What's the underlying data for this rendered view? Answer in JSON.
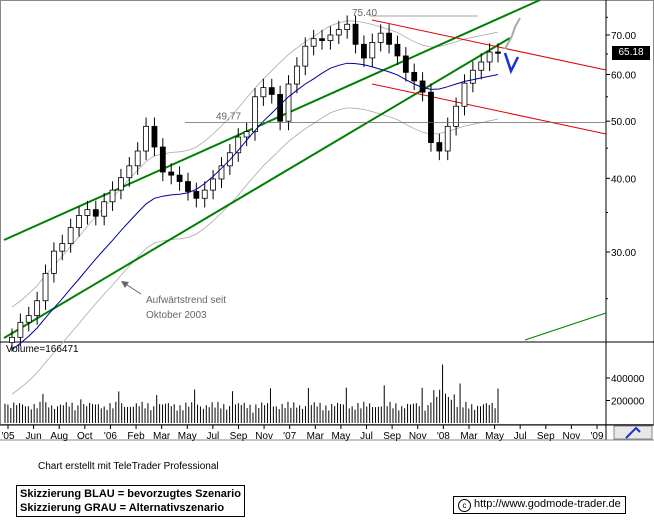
{
  "chart_data": {
    "type": "candlestick",
    "price_axis": {
      "tick_labels": [
        "70.00",
        "60.00",
        "50.00",
        "40.00",
        "30.00"
      ],
      "ticks": [
        70,
        60,
        50,
        40,
        30
      ],
      "scale": "log"
    },
    "x_axis": {
      "tick_labels": [
        "'05",
        "Jun",
        "Aug",
        "Oct",
        "'06",
        "Feb",
        "Mar",
        "May",
        "Jul",
        "Sep",
        "Nov",
        "'07",
        "Mar",
        "May",
        "Jul",
        "Sep",
        "Nov",
        "'08",
        "Mar",
        "May",
        "Jul",
        "Sep",
        "Nov",
        "'09"
      ]
    },
    "series": [
      {
        "name": "price",
        "close": [
          21.5,
          22.8,
          23.4,
          24.8,
          27.6,
          30.1,
          31.0,
          33.0,
          34.6,
          35.4,
          34.5,
          36.5,
          38.2,
          40.1,
          42.0,
          44.5,
          49.0,
          45.2,
          41.0,
          40.5,
          39.5,
          38.0,
          37.0,
          38.2,
          39.9,
          42.0,
          44.2,
          47.0,
          48.0,
          55.0,
          57.0,
          55.5,
          50.0,
          57.8,
          62.0,
          67.0,
          69.0,
          68.5,
          70.0,
          71.5,
          73.0,
          67.5,
          64.0,
          68.0,
          70.5,
          67.5,
          64.5,
          60.5,
          58.5,
          56.0,
          46.0,
          44.5,
          49.0,
          53.0,
          58.0,
          61.0,
          63.0,
          65.5,
          65.18
        ]
      },
      {
        "name": "moving-average",
        "values": [
          20.5,
          21.0,
          21.6,
          22.3,
          23.2,
          24.1,
          25.0,
          26.0,
          27.0,
          28.1,
          29.2,
          30.3,
          31.4,
          32.6,
          33.8,
          35.0,
          36.2,
          37.0,
          37.3,
          37.5,
          37.6,
          37.8,
          38.3,
          39.2,
          40.3,
          41.6,
          43.0,
          44.6,
          46.4,
          48.2,
          50.0,
          51.6,
          53.3,
          55.0,
          56.4,
          57.8,
          59.0,
          60.3,
          61.5,
          62.2,
          62.7,
          62.6,
          62.3,
          61.8,
          61.2,
          60.6,
          59.9,
          58.8,
          57.8,
          57.0,
          56.6,
          56.7,
          57.2,
          57.8,
          58.4,
          58.8,
          59.2,
          59.6,
          60.0
        ]
      }
    ],
    "volume": {
      "label": "Volume=166471",
      "tick_labels": [
        "400000",
        "200000"
      ],
      "ticks": [
        400000,
        200000
      ]
    },
    "annotations": [
      "75.40",
      "49,77",
      "Aufwärtstrend seit",
      "Oktober 2003"
    ],
    "last_price": "65.18",
    "colors": {
      "uptrend": "#008000",
      "downtrend": "#e00000",
      "moving_average": "#000099",
      "scenario_blue": "#1a2ed6",
      "scenario_gray": "#aaaaaa"
    }
  },
  "caption": "Chart erstellt mit TeleTrader Professional",
  "legend": {
    "blue": "Skizzierung BLAU = bevorzugtes Szenario",
    "gray": "Skizzierung GRAU = Alternativszenario"
  },
  "copyright": "http://www.godmode-trader.de"
}
